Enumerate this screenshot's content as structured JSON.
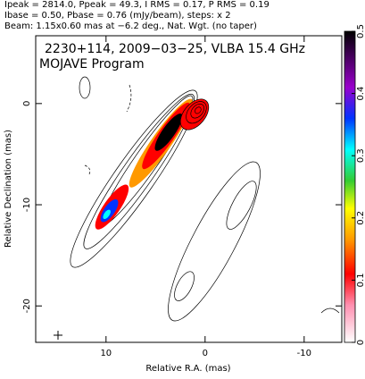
{
  "chart_data": {
    "type": "image",
    "header": [
      "Ipeak = 2814.0, Ppeak = 49.3, I RMS = 0.17, P RMS = 0.19",
      "Ibase = 0.50, Pbase = 0.76 (mJy/beam), steps: x 2",
      "Beam: 1.15x0.60 mas at −6.2 deg., Nat. Wgt. (no taper)"
    ],
    "title": "2230+114, 2009−03−25, VLBA 15.4 GHz",
    "subtitle": "MOJAVE Program",
    "x_label": "Relative R.A. (mas)",
    "y_label": "Relative Declination (mas)",
    "xlim": [
      17.1,
      -13.8
    ],
    "xticks": [
      10,
      0,
      -10
    ],
    "ylim": [
      -23.6,
      6.7
    ],
    "yticks": [
      0,
      -10,
      -20
    ],
    "colorbar_lim": [
      0,
      0.5
    ],
    "colorbar_ticks": [
      0,
      0.1,
      0.2,
      0.3,
      0.4,
      0.5
    ]
  }
}
